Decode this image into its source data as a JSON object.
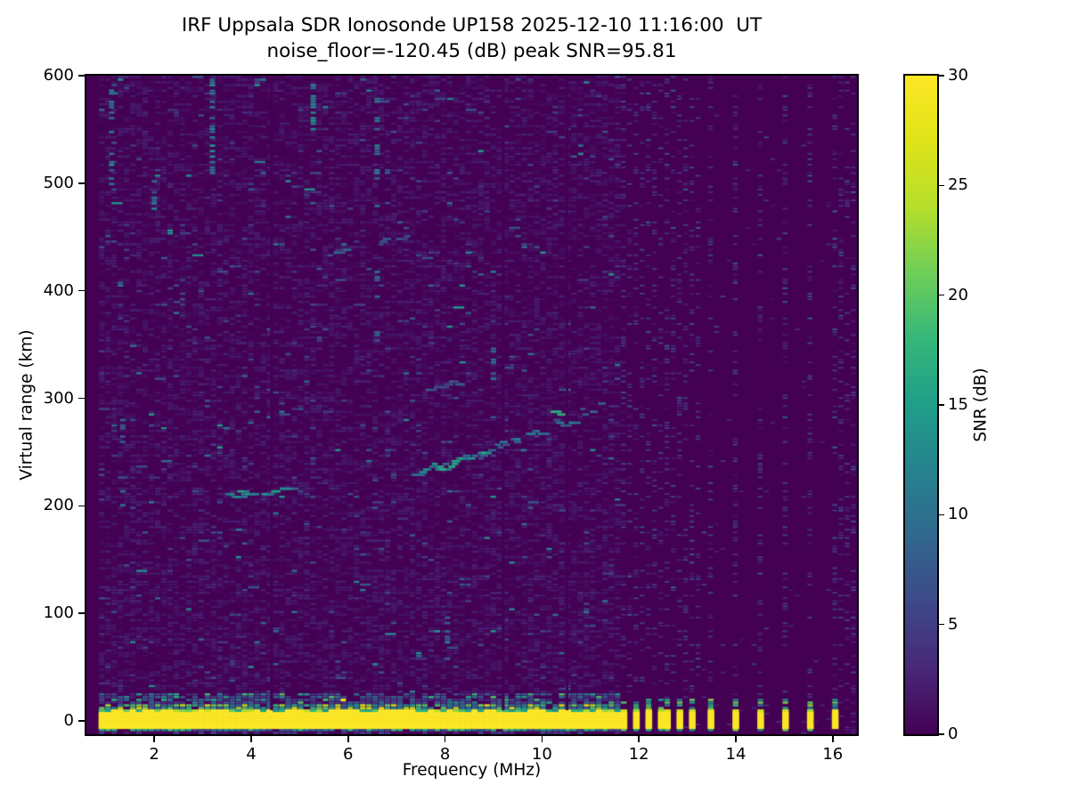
{
  "figure": {
    "title_line1": "IRF Uppsala SDR Ionosonde UP158 2025-12-10 11:16:00  UT",
    "title_line2": "noise_floor=-120.45 (dB) peak SNR=95.81"
  },
  "chart_data": {
    "type": "heatmap",
    "title": "IRF Uppsala SDR Ionosonde UP158 2025-12-10 11:16:00  UT",
    "subtitle": "noise_floor=-120.45 (dB) peak SNR=95.81",
    "xlabel": "Frequency (MHz)",
    "ylabel": "Virtual range (km)",
    "grid": false,
    "x_axis": {
      "min": 0.6,
      "max": 16.5,
      "ticks": [
        2,
        4,
        6,
        8,
        10,
        12,
        14,
        16
      ]
    },
    "y_axis": {
      "min": -12.4,
      "max": 600,
      "ticks": [
        0,
        100,
        200,
        300,
        400,
        500,
        600
      ]
    },
    "colorbar": {
      "label": "SNR (dB)",
      "min": 0,
      "max": 30,
      "ticks": [
        0,
        5,
        10,
        15,
        20,
        25,
        30
      ],
      "colormap": "viridis",
      "stops": [
        "#440154",
        "#482878",
        "#3e4989",
        "#31688e",
        "#26828e",
        "#1f9e89",
        "#35b779",
        "#6ece58",
        "#b5de2b",
        "#dfe318",
        "#fde725"
      ]
    },
    "features": {
      "background_snr_db": 0,
      "sweep_start_mhz": 0.85,
      "ground_pulse_band": {
        "freq_mhz": [
          0.85,
          11.62
        ],
        "range_km": [
          -7,
          9.5
        ],
        "snr_db": 30
      },
      "pulsed_bars_dense_mhz": [
        11.7,
        11.94,
        12.17,
        12.41,
        12.64,
        12.88,
        13.11
      ],
      "pulsed_bars_sparse_mhz": [
        13.5,
        14.0,
        14.5,
        15.0,
        15.5,
        16.1
      ],
      "dense_stripe_region_mhz": [
        11.64,
        13.28
      ],
      "right_edge_haze_mhz": 16.15,
      "e_region_echo": {
        "name": "e-region-echo",
        "points": [
          [
            3.55,
            210
          ],
          [
            3.85,
            212
          ],
          [
            4.4,
            214
          ],
          [
            4.9,
            218
          ]
        ],
        "thickness_km": 4,
        "density": 0.85,
        "snr_db": [
          9,
          17
        ]
      },
      "f_region_echo": {
        "name": "f-region-echo",
        "points": [
          [
            7.4,
            231
          ],
          [
            8.1,
            239
          ],
          [
            8.8,
            250
          ],
          [
            9.5,
            261
          ],
          [
            10.2,
            274
          ],
          [
            10.9,
            287
          ],
          [
            11.35,
            297
          ]
        ],
        "thickness_km": 7,
        "density": 0.5,
        "snr_db": [
          6,
          13
        ]
      },
      "traces": [
        {
          "name": "e-region-echo",
          "points": [
            [
              3.55,
              210
            ],
            [
              3.85,
              212
            ],
            [
              4.4,
              214
            ],
            [
              4.9,
              218
            ]
          ],
          "thickness_km": 4,
          "density": 0.85,
          "snr_db": [
            9,
            17
          ]
        },
        {
          "name": "f-region-echo-main",
          "points": [
            [
              7.4,
              231
            ],
            [
              8.1,
              239
            ],
            [
              8.8,
              250
            ],
            [
              9.5,
              261
            ],
            [
              10.2,
              274
            ],
            [
              10.9,
              287
            ],
            [
              11.35,
              297
            ]
          ],
          "thickness_km": 7,
          "density": 0.5,
          "snr_db": [
            6,
            13
          ]
        },
        {
          "name": "f-region-echo-bright",
          "points": [
            [
              7.55,
              234
            ],
            [
              8.2,
              241
            ],
            [
              8.9,
              251
            ]
          ],
          "thickness_km": 5,
          "density": 0.75,
          "snr_db": [
            10,
            17
          ]
        },
        {
          "name": "f-region-echo-spot",
          "points": [
            [
              10.26,
              286
            ],
            [
              10.4,
              288
            ]
          ],
          "thickness_km": 4,
          "density": 0.9,
          "snr_db": [
            14,
            18
          ]
        },
        {
          "name": "second-hop-echo-a",
          "points": [
            [
              5.45,
              434
            ],
            [
              6.1,
              441
            ]
          ],
          "thickness_km": 3,
          "density": 0.6,
          "snr_db": [
            6,
            10
          ]
        },
        {
          "name": "second-hop-echo-b",
          "points": [
            [
              6.62,
              445
            ],
            [
              7.22,
              451
            ]
          ],
          "thickness_km": 3,
          "density": 0.5,
          "snr_db": [
            5,
            8
          ]
        },
        {
          "name": "second-hop-echo-c",
          "points": [
            [
              7.6,
              308
            ],
            [
              8.35,
              317
            ]
          ],
          "thickness_km": 3,
          "density": 0.5,
          "snr_db": [
            5,
            9
          ]
        }
      ],
      "noise_streaks": [
        {
          "freq_mhz": 1.12,
          "range_km": [
            495,
            588
          ],
          "density": 0.5,
          "snr_db": [
            8,
            14
          ]
        },
        {
          "freq_mhz": 1.35,
          "range_km": [
            200,
            290
          ],
          "density": 0.3,
          "snr_db": [
            6,
            11
          ]
        },
        {
          "freq_mhz": 2.0,
          "range_km": [
            468,
            505
          ],
          "density": 0.45,
          "snr_db": [
            7,
            12
          ]
        },
        {
          "freq_mhz": 3.2,
          "range_km": [
            505,
            598
          ],
          "density": 0.55,
          "snr_db": [
            8,
            15
          ]
        },
        {
          "freq_mhz": 5.28,
          "range_km": [
            550,
            592
          ],
          "density": 0.5,
          "snr_db": [
            8,
            14
          ]
        },
        {
          "freq_mhz": 6.6,
          "range_km": [
            335,
            595
          ],
          "density": 0.16,
          "snr_db": [
            6,
            12
          ]
        },
        {
          "freq_mhz": 6.6,
          "range_km": [
            495,
            590
          ],
          "density": 0.3,
          "snr_db": [
            7,
            12
          ]
        },
        {
          "freq_mhz": 9.0,
          "range_km": [
            315,
            350
          ],
          "density": 0.45,
          "snr_db": [
            7,
            13
          ]
        },
        {
          "freq_mhz": 10.8,
          "range_km": [
            522,
            556
          ],
          "density": 0.4,
          "snr_db": [
            8,
            13
          ]
        },
        {
          "freq_mhz": 8.05,
          "range_km": [
            55,
            100
          ],
          "density": 0.35,
          "snr_db": [
            7,
            12
          ]
        }
      ],
      "notch_freqs_mhz": [
        4.42,
        9.2,
        10.52
      ],
      "hot_pixels": [
        {
          "freq_mhz": 5.9,
          "range_km": 21,
          "snr_db": 29
        }
      ]
    }
  },
  "colors": {
    "plot_background": "#440154",
    "peak": "#fde725",
    "text": "#000000",
    "figure_background": "#ffffff"
  }
}
